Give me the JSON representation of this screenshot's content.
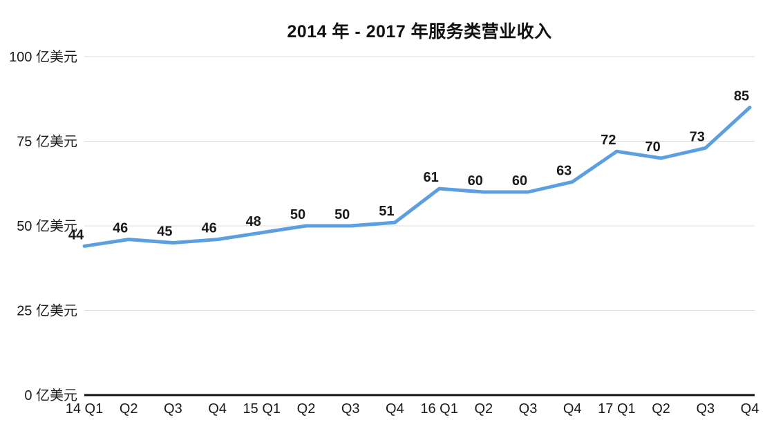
{
  "chart_data": {
    "type": "line",
    "title": "2014 年 - 2017 年服务类营业收入",
    "categories": [
      "14 Q1",
      "Q2",
      "Q3",
      "Q4",
      "15 Q1",
      "Q2",
      "Q3",
      "Q4",
      "16 Q1",
      "Q2",
      "Q3",
      "Q4",
      "17 Q1",
      "Q2",
      "Q3",
      "Q4"
    ],
    "series": [
      {
        "name": "服务类营业收入",
        "values": [
          44,
          46,
          45,
          46,
          48,
          50,
          50,
          51,
          61,
          60,
          60,
          63,
          72,
          70,
          73,
          85
        ]
      }
    ],
    "unit": "亿美元",
    "xlabel": "",
    "ylabel": "亿美元",
    "ylim": [
      0,
      100
    ],
    "y_ticks": [
      {
        "value": 0,
        "label": "0 亿美元"
      },
      {
        "value": 25,
        "label": "25 亿美元"
      },
      {
        "value": 50,
        "label": "50 亿美元"
      },
      {
        "value": 75,
        "label": "75 亿美元"
      },
      {
        "value": 100,
        "label": "100 亿美元"
      }
    ],
    "grid": true,
    "legend_position": "none",
    "data_labels_visible": true,
    "colors": {
      "line": "#5C9FE0",
      "gridline": "#DCDCDC",
      "axis": "#111111",
      "text": "#1A1A1A",
      "background": "#FFFFFF"
    }
  }
}
